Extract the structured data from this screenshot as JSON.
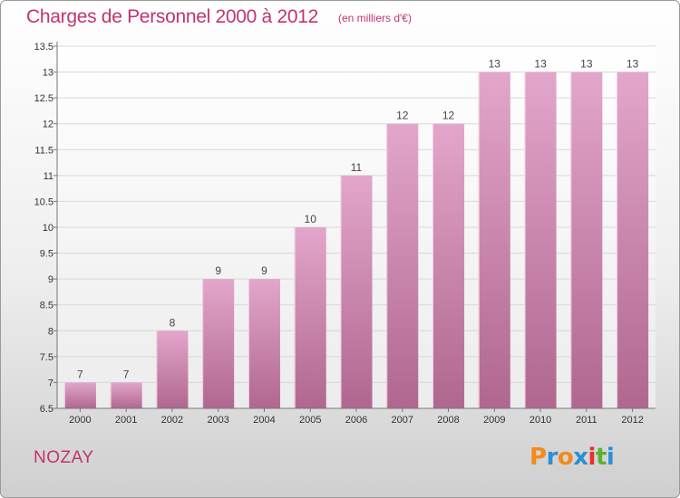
{
  "title": "Charges de Personnel 2000 à 2012",
  "subtitle": "(en milliers d'€)",
  "commune": "NOZAY",
  "logo": {
    "letters": [
      "P",
      "r",
      "o",
      "x",
      "i",
      "t",
      "i"
    ],
    "colors": [
      "#f28a1c",
      "#2a8fd6",
      "#f28a1c",
      "#2a8fd6",
      "#e8302a",
      "#5bb12f",
      "#2a8fd6"
    ]
  },
  "chart_data": {
    "type": "bar",
    "categories": [
      "2000",
      "2001",
      "2002",
      "2003",
      "2004",
      "2005",
      "2006",
      "2007",
      "2008",
      "2009",
      "2010",
      "2011",
      "2012"
    ],
    "values": [
      7,
      7,
      8,
      9,
      9,
      10,
      11,
      12,
      12,
      13,
      13,
      13,
      13
    ],
    "data_labels": [
      "7",
      "7",
      "8",
      "9",
      "9",
      "10",
      "11",
      "12",
      "12",
      "13",
      "13",
      "13",
      "13"
    ],
    "ylim": [
      6.5,
      13.5
    ],
    "yticks": [
      6.5,
      7,
      7.5,
      8,
      8.5,
      9,
      9.5,
      10,
      10.5,
      11,
      11.5,
      12,
      12.5,
      13,
      13.5
    ],
    "ytick_labels": [
      "6.5",
      "7",
      "7.5",
      "8",
      "8.5",
      "9",
      "9.5",
      "10",
      "10.5",
      "11",
      "11.5",
      "12",
      "12.5",
      "13",
      "13.5"
    ],
    "grid": true,
    "bar_color_top": "#e3a6cb",
    "bar_color_bottom": "#b0678f"
  }
}
